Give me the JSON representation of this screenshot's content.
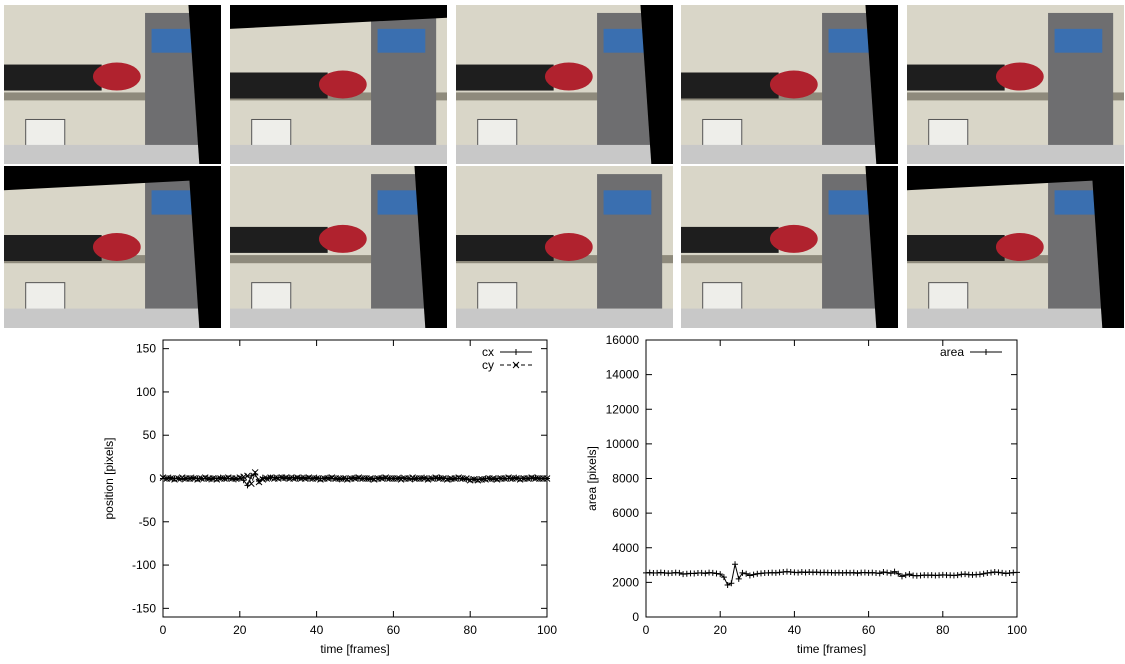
{
  "chart_data": [
    {
      "type": "line",
      "x_label": "time [frames]",
      "y_label": "position [pixels]",
      "xlim": [
        0,
        100
      ],
      "xticks": [
        0,
        20,
        40,
        60,
        80,
        100
      ],
      "ylim": [
        -160,
        160
      ],
      "yticks": [
        -150,
        -100,
        -50,
        0,
        50,
        100,
        150
      ],
      "legend": "top-right",
      "grid": false,
      "x": [
        0,
        1,
        2,
        3,
        4,
        5,
        6,
        7,
        8,
        9,
        10,
        11,
        12,
        13,
        14,
        15,
        16,
        17,
        18,
        19,
        20,
        21,
        22,
        23,
        24,
        25,
        26,
        27,
        28,
        29,
        30,
        31,
        32,
        33,
        34,
        35,
        36,
        37,
        38,
        39,
        40,
        41,
        42,
        43,
        44,
        45,
        46,
        47,
        48,
        49,
        50,
        51,
        52,
        53,
        54,
        55,
        56,
        57,
        58,
        59,
        60,
        61,
        62,
        63,
        64,
        65,
        66,
        67,
        68,
        69,
        70,
        71,
        72,
        73,
        74,
        75,
        76,
        77,
        78,
        79,
        80,
        81,
        82,
        83,
        84,
        85,
        86,
        87,
        88,
        89,
        90,
        91,
        92,
        93,
        94,
        95,
        96,
        97,
        98,
        99,
        100
      ],
      "series": [
        {
          "name": "cx",
          "color": "#000000",
          "dash": "solid",
          "marker": "plus",
          "values": [
            0,
            0,
            1,
            0,
            0,
            -1,
            0,
            0,
            1,
            0,
            0,
            0,
            -1,
            0,
            0,
            1,
            0,
            0,
            0,
            -1,
            0,
            -2,
            -8,
            3,
            5,
            -3,
            1,
            0,
            1,
            1,
            1,
            1,
            0,
            1,
            1,
            0,
            1,
            1,
            0,
            0,
            1,
            0,
            0,
            1,
            0,
            0,
            -1,
            0,
            0,
            0,
            1,
            0,
            0,
            0,
            -1,
            0,
            0,
            1,
            0,
            0,
            0,
            0,
            1,
            0,
            0,
            -1,
            0,
            0,
            1,
            0,
            0,
            0,
            1,
            0,
            0,
            -1,
            0,
            0,
            0,
            -1,
            -1,
            -1,
            -1,
            -1,
            0,
            0,
            -1,
            0,
            0,
            0,
            0,
            0,
            1,
            0,
            0,
            0,
            0,
            1,
            0,
            0,
            0
          ]
        },
        {
          "name": "cy",
          "color": "#000000",
          "dash": "dashed",
          "marker": "cross",
          "values": [
            1,
            0,
            0,
            -1,
            0,
            1,
            0,
            0,
            0,
            -1,
            0,
            1,
            0,
            0,
            -1,
            0,
            0,
            1,
            0,
            0,
            1,
            2,
            3,
            -6,
            7,
            -4,
            -1,
            0,
            1,
            0,
            0,
            1,
            1,
            0,
            0,
            1,
            0,
            0,
            1,
            0,
            0,
            -1,
            0,
            0,
            1,
            0,
            0,
            0,
            -1,
            0,
            0,
            1,
            0,
            0,
            0,
            -1,
            0,
            0,
            1,
            0,
            0,
            0,
            -1,
            0,
            0,
            1,
            0,
            0,
            0,
            -1,
            0,
            1,
            0,
            0,
            -1,
            0,
            0,
            1,
            0,
            0,
            -2,
            -1,
            -2,
            -1,
            -1,
            0,
            0,
            -1,
            0,
            0,
            1,
            0,
            0,
            -1,
            0,
            0,
            1,
            0,
            0,
            0,
            0
          ]
        }
      ]
    },
    {
      "type": "line",
      "x_label": "time [frames]",
      "y_label": "area [pixels]",
      "xlim": [
        0,
        100
      ],
      "xticks": [
        0,
        20,
        40,
        60,
        80,
        100
      ],
      "ylim": [
        0,
        16000
      ],
      "yticks": [
        0,
        2000,
        4000,
        6000,
        8000,
        10000,
        12000,
        14000,
        16000
      ],
      "legend": "top-right",
      "grid": false,
      "x": [
        0,
        1,
        2,
        3,
        4,
        5,
        6,
        7,
        8,
        9,
        10,
        11,
        12,
        13,
        14,
        15,
        16,
        17,
        18,
        19,
        20,
        21,
        22,
        23,
        24,
        25,
        26,
        27,
        28,
        29,
        30,
        31,
        32,
        33,
        34,
        35,
        36,
        37,
        38,
        39,
        40,
        41,
        42,
        43,
        44,
        45,
        46,
        47,
        48,
        49,
        50,
        51,
        52,
        53,
        54,
        55,
        56,
        57,
        58,
        59,
        60,
        61,
        62,
        63,
        64,
        65,
        66,
        67,
        68,
        69,
        70,
        71,
        72,
        73,
        74,
        75,
        76,
        77,
        78,
        79,
        80,
        81,
        82,
        83,
        84,
        85,
        86,
        87,
        88,
        89,
        90,
        91,
        92,
        93,
        94,
        95,
        96,
        97,
        98,
        99,
        100
      ],
      "series": [
        {
          "name": "area",
          "color": "#000000",
          "dash": "solid",
          "marker": "plus",
          "values": [
            2550,
            2560,
            2540,
            2550,
            2570,
            2550,
            2530,
            2540,
            2560,
            2550,
            2480,
            2500,
            2520,
            2510,
            2540,
            2550,
            2520,
            2560,
            2550,
            2510,
            2480,
            2300,
            1850,
            1950,
            3050,
            2200,
            2550,
            2500,
            2400,
            2450,
            2500,
            2520,
            2540,
            2550,
            2560,
            2550,
            2580,
            2600,
            2620,
            2600,
            2580,
            2560,
            2600,
            2570,
            2600,
            2580,
            2590,
            2560,
            2580,
            2560,
            2560,
            2550,
            2560,
            2540,
            2560,
            2550,
            2560,
            2530,
            2560,
            2570,
            2550,
            2560,
            2540,
            2520,
            2600,
            2560,
            2530,
            2620,
            2500,
            2350,
            2420,
            2480,
            2400,
            2380,
            2400,
            2420,
            2410,
            2420,
            2400,
            2410,
            2430,
            2420,
            2410,
            2400,
            2420,
            2460,
            2480,
            2450,
            2430,
            2450,
            2460,
            2500,
            2540,
            2560,
            2600,
            2580,
            2550,
            2510,
            2540,
            2560,
            2580
          ]
        }
      ]
    }
  ]
}
